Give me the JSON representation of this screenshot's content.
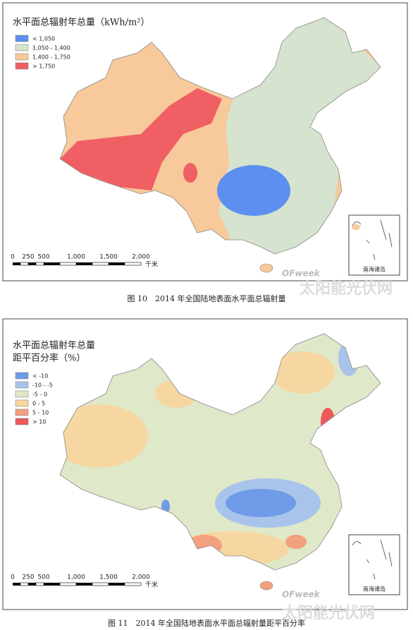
{
  "maps": [
    {
      "title": [
        "水平面总辐射年总量（kWh/m²）"
      ],
      "legend": [
        {
          "label": "< 1,050",
          "color": "#5c8ff0"
        },
        {
          "label": "1,050 - 1,400",
          "color": "#d5e3cf"
        },
        {
          "label": "1,400 - 1,750",
          "color": "#f8c99a"
        },
        {
          "label": "> 1,750",
          "color": "#ef5f63"
        }
      ],
      "scale_bar": {
        "ticks": [
          "0",
          "250",
          "500",
          "1,000",
          "1,500",
          "2,000"
        ],
        "unit": "千米"
      },
      "inset_label": "南海诸岛",
      "caption": "图 10　2014 年全国陆地表面水平面总辐射量"
    },
    {
      "title": [
        "水平面总辐射年总量",
        "距平百分率（%）"
      ],
      "legend": [
        {
          "label": "< -10",
          "color": "#6f9be8"
        },
        {
          "label": "-10 - -5",
          "color": "#a9c4ea"
        },
        {
          "label": "-5 - 0",
          "color": "#dfe8c9"
        },
        {
          "label": "0 - 5",
          "color": "#f7d7a1"
        },
        {
          "label": "5 - 10",
          "color": "#f3a080"
        },
        {
          "label": "> 10",
          "color": "#ee5a5a"
        }
      ],
      "scale_bar": {
        "ticks": [
          "0",
          "250",
          "500",
          "1,000",
          "1,500",
          "2,000"
        ],
        "unit": "千米"
      },
      "inset_label": "南海诸岛",
      "caption": "图 11　2014 年全国陆地表面水平面总辐射量距平百分率"
    }
  ],
  "watermark": {
    "brand": "OFweek",
    "site": "太阳能光伏网"
  }
}
